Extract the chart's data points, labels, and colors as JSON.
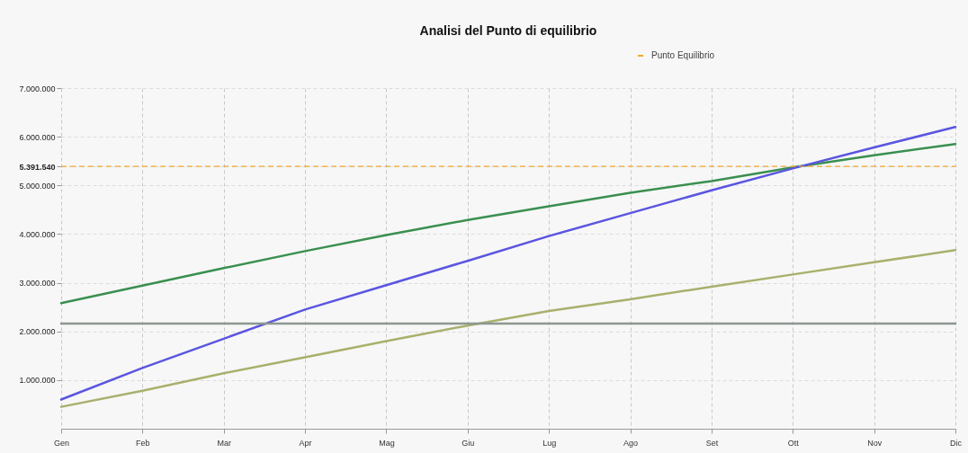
{
  "chart_data": {
    "type": "line",
    "title": "Analisi del Punto di equilibrio",
    "categories": [
      "Gen",
      "Feb",
      "Mar",
      "Apr",
      "Mag",
      "Giu",
      "Lug",
      "Ago",
      "Set",
      "Ott",
      "Nov",
      "Dic"
    ],
    "series": [
      {
        "color": "#3a8f4f",
        "values": [
          2580000,
          2940000,
          3300000,
          3650000,
          3980000,
          4290000,
          4570000,
          4850000,
          5090000,
          5370000,
          5620000,
          5850000
        ]
      },
      {
        "color": "#5a55e0",
        "values": [
          600000,
          1250000,
          1850000,
          2450000,
          2950000,
          3450000,
          3960000,
          4430000,
          4900000,
          5350000,
          5780000,
          6200000
        ]
      },
      {
        "color": "#a9b06c",
        "values": [
          450000,
          780000,
          1140000,
          1470000,
          1800000,
          2120000,
          2420000,
          2660000,
          2920000,
          3170000,
          3420000,
          3670000
        ]
      },
      {
        "color": "#8c9890",
        "values": [
          2160000,
          2160000,
          2160000,
          2160000,
          2160000,
          2160000,
          2160000,
          2160000,
          2160000,
          2160000,
          2160000,
          2160000
        ]
      }
    ],
    "ylim": [
      0,
      7000000
    ],
    "yticks": [
      {
        "value": 1000000,
        "label": "1.000.000"
      },
      {
        "value": 2000000,
        "label": "2.000.000"
      },
      {
        "value": 3000000,
        "label": "3.000.000"
      },
      {
        "value": 4000000,
        "label": "4.000.000"
      },
      {
        "value": 5000000,
        "label": "5.000.000"
      },
      {
        "value": 5391540,
        "label": "5.391.540"
      },
      {
        "value": 6000000,
        "label": "6.000.000"
      },
      {
        "value": 7000000,
        "label": "7.000.000"
      }
    ],
    "ref_lines": [
      {
        "axis": "y",
        "value": 5391540,
        "label": "Punto Equilibrio",
        "color": "#f0a830",
        "line_style": "dashed"
      }
    ],
    "grid": true,
    "legend": "top",
    "line_style": "solid",
    "marker": "none"
  }
}
